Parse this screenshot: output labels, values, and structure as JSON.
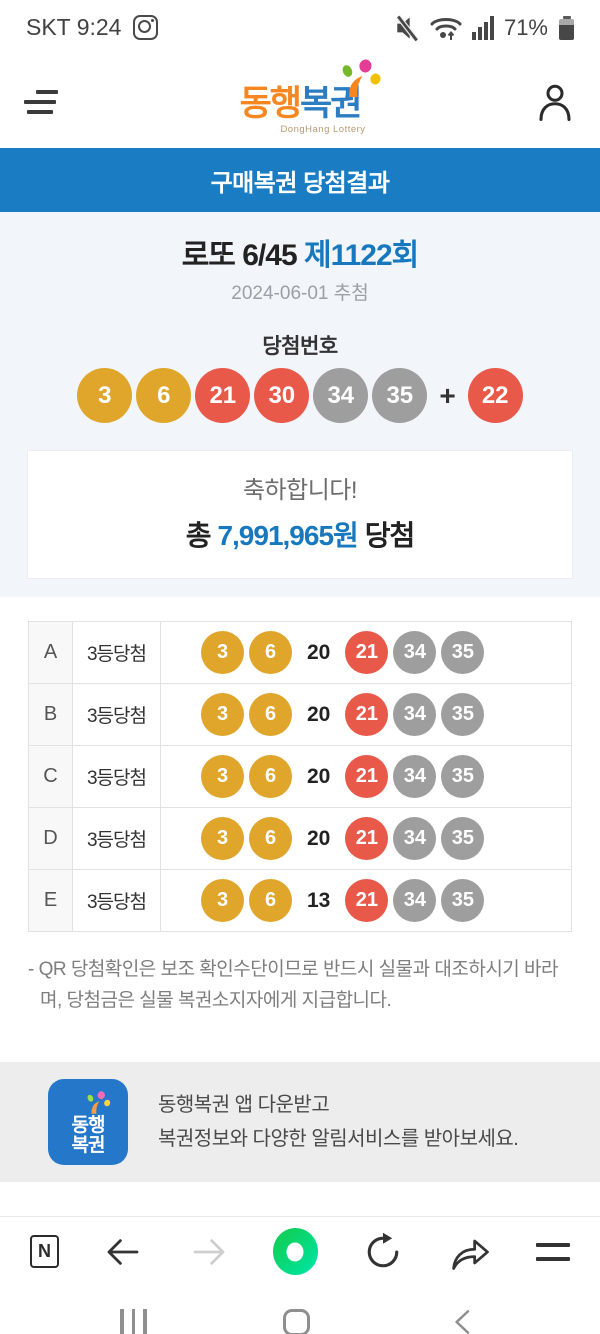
{
  "status_bar": {
    "carrier_time": "SKT 9:24",
    "battery_percent": "71%"
  },
  "header": {
    "logo_text_1": "동행",
    "logo_text_2": "복권",
    "logo_subtitle": "DongHang Lottery"
  },
  "page_banner": {
    "title": "구매복권 당첨결과"
  },
  "draw": {
    "game_name": "로또 6/45",
    "round_label": "제1122회",
    "draw_date": "2024-06-01 추첨",
    "winning_numbers_label": "당첨번호",
    "plus_sign": "+",
    "winning_numbers": [
      {
        "n": "3",
        "color": "yellow"
      },
      {
        "n": "6",
        "color": "yellow"
      },
      {
        "n": "21",
        "color": "red"
      },
      {
        "n": "30",
        "color": "red"
      },
      {
        "n": "34",
        "color": "gray"
      },
      {
        "n": "35",
        "color": "gray"
      }
    ],
    "bonus_number": {
      "n": "22",
      "color": "red"
    }
  },
  "congrats": {
    "message": "축하합니다!",
    "total_prefix": "총",
    "total_amount": "7,991,965원",
    "total_suffix": "당첨"
  },
  "tickets": [
    {
      "slot": "A",
      "result": "3등당첨",
      "numbers": [
        {
          "n": "3",
          "color": "yellow"
        },
        {
          "n": "6",
          "color": "yellow"
        },
        {
          "n": "20",
          "color": "none"
        },
        {
          "n": "21",
          "color": "red"
        },
        {
          "n": "34",
          "color": "gray"
        },
        {
          "n": "35",
          "color": "gray"
        }
      ]
    },
    {
      "slot": "B",
      "result": "3등당첨",
      "numbers": [
        {
          "n": "3",
          "color": "yellow"
        },
        {
          "n": "6",
          "color": "yellow"
        },
        {
          "n": "20",
          "color": "none"
        },
        {
          "n": "21",
          "color": "red"
        },
        {
          "n": "34",
          "color": "gray"
        },
        {
          "n": "35",
          "color": "gray"
        }
      ]
    },
    {
      "slot": "C",
      "result": "3등당첨",
      "numbers": [
        {
          "n": "3",
          "color": "yellow"
        },
        {
          "n": "6",
          "color": "yellow"
        },
        {
          "n": "20",
          "color": "none"
        },
        {
          "n": "21",
          "color": "red"
        },
        {
          "n": "34",
          "color": "gray"
        },
        {
          "n": "35",
          "color": "gray"
        }
      ]
    },
    {
      "slot": "D",
      "result": "3등당첨",
      "numbers": [
        {
          "n": "3",
          "color": "yellow"
        },
        {
          "n": "6",
          "color": "yellow"
        },
        {
          "n": "20",
          "color": "none"
        },
        {
          "n": "21",
          "color": "red"
        },
        {
          "n": "34",
          "color": "gray"
        },
        {
          "n": "35",
          "color": "gray"
        }
      ]
    },
    {
      "slot": "E",
      "result": "3등당첨",
      "numbers": [
        {
          "n": "3",
          "color": "yellow"
        },
        {
          "n": "6",
          "color": "yellow"
        },
        {
          "n": "13",
          "color": "none"
        },
        {
          "n": "21",
          "color": "red"
        },
        {
          "n": "34",
          "color": "gray"
        },
        {
          "n": "35",
          "color": "gray"
        }
      ]
    }
  ],
  "notice": "- QR 당첨확인은 보조 확인수단이므로 반드시 실물과 대조하시기 바라며, 당첨금은 실물 복권소지자에게 지급합니다.",
  "app_banner": {
    "icon_text_1": "동행",
    "icon_text_2": "복권",
    "line1": "동행복권 앱 다운받고",
    "line2": "복권정보와 다양한 알림서비스를 받아보세요."
  },
  "browser_nav": {
    "naver_label": "N"
  },
  "colors": {
    "banner_blue": "#1a7cc2",
    "accent_blue": "#1778be",
    "ball_yellow": "#dfa62b",
    "ball_red": "#e8594a",
    "ball_gray": "#9e9e9e",
    "naver_green": "#0fd05c",
    "app_icon_blue": "#2577c9"
  }
}
